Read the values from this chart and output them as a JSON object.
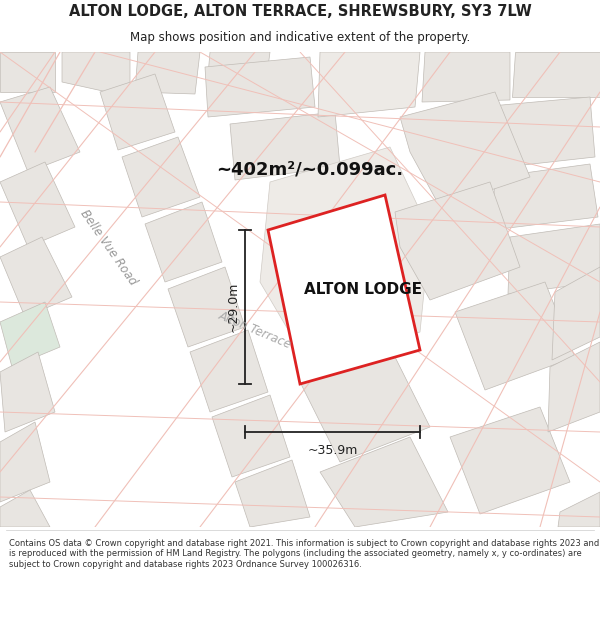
{
  "title_line1": "ALTON LODGE, ALTON TERRACE, SHREWSBURY, SY3 7LW",
  "title_line2": "Map shows position and indicative extent of the property.",
  "area_text": "~402m²/~0.099ac.",
  "property_label": "ALTON LODGE",
  "dim_width": "~35.9m",
  "dim_height": "~29.0m",
  "road_label1": "Belle Vue Road",
  "road_label2": "Alton Terrace",
  "footer_text": "Contains OS data © Crown copyright and database right 2021. This information is subject to Crown copyright and database rights 2023 and is reproduced with the permission of HM Land Registry. The polygons (including the associated geometry, namely x, y co-ordinates) are subject to Crown copyright and database rights 2023 Ordnance Survey 100026316.",
  "map_bg": "#f2efec",
  "block_fill": "#e8e5e1",
  "block_fill2": "#edeae6",
  "block_stroke": "#c0bbb5",
  "green_fill": "#dce8dc",
  "street_color": "#f0c0b8",
  "property_fill": "#ffffff",
  "property_stroke": "#dd2222",
  "dim_color": "#222222",
  "label_color": "#aaaaaa",
  "title_color": "#222222"
}
